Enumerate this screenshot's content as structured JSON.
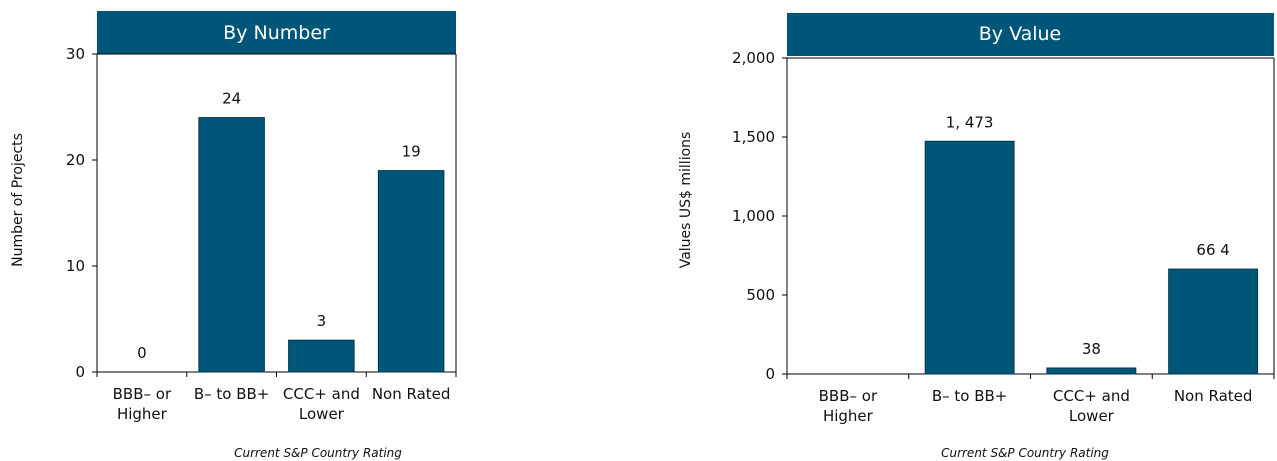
{
  "colors": {
    "bar": "#005678",
    "header": "#005678",
    "axis": "#000000"
  },
  "chart_data": [
    {
      "type": "bar",
      "title": "By Number",
      "ylabel": "Number of Projects",
      "xlabel": "Current S&P Country Rating",
      "categories": [
        [
          "BBB– or",
          "Higher"
        ],
        [
          "B– to BB+"
        ],
        [
          "CCC+ and",
          "Lower"
        ],
        [
          "Non Rated"
        ]
      ],
      "values": [
        0,
        24,
        3,
        19
      ],
      "value_labels": [
        "0",
        "24",
        "3",
        "19"
      ],
      "ylim": [
        0,
        30
      ],
      "yticks": [
        0,
        10,
        20,
        30
      ],
      "ytick_labels": [
        "0",
        "10",
        "20",
        "30"
      ],
      "grid": false
    },
    {
      "type": "bar",
      "title": "By Value",
      "ylabel": "Values US$ millions",
      "xlabel": "Current S&P Country Rating",
      "categories": [
        [
          "BBB– or",
          "Higher"
        ],
        [
          "B– to BB+"
        ],
        [
          "CCC+ and",
          "Lower"
        ],
        [
          "Non Rated"
        ]
      ],
      "values": [
        0,
        1473,
        38,
        664
      ],
      "value_labels": [
        "",
        "1, 473",
        "38",
        "66 4"
      ],
      "ylim": [
        0,
        2000
      ],
      "yticks": [
        0,
        500,
        1000,
        1500,
        2000
      ],
      "ytick_labels": [
        "0",
        "500",
        "1,000",
        "1,500",
        "2,000"
      ],
      "grid": false
    }
  ]
}
